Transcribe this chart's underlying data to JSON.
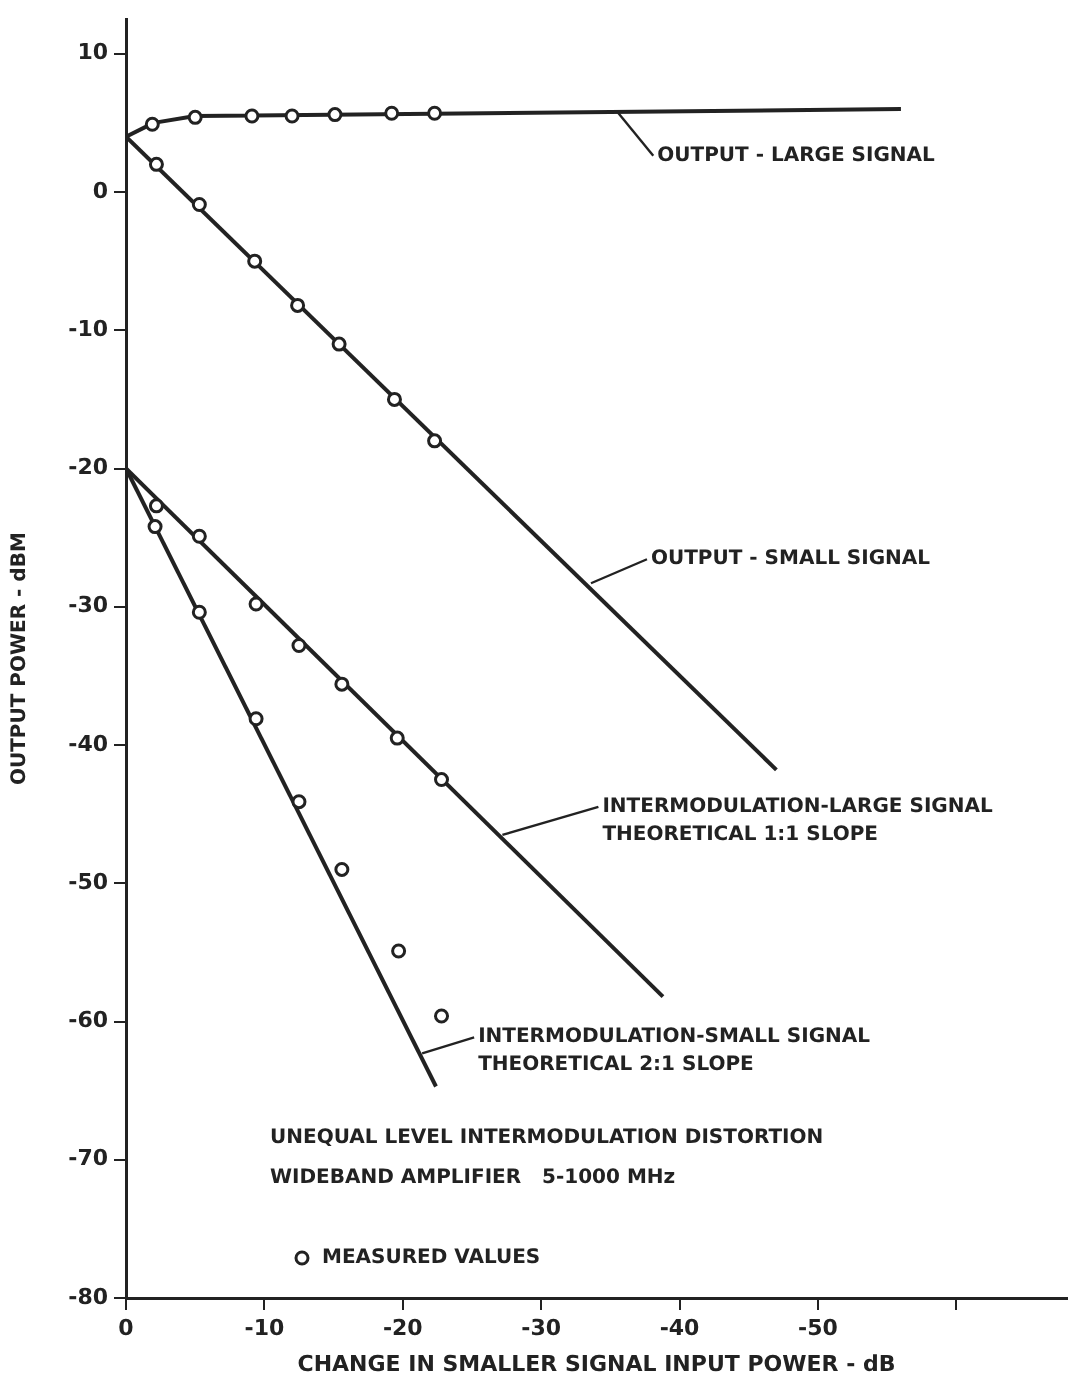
{
  "chart_data": {
    "type": "line",
    "xlabel": "CHANGE IN SMALLER SIGNAL INPUT POWER - dB",
    "ylabel": "OUTPUT POWER - dBM",
    "xlim": [
      0,
      -68
    ],
    "xticks": [
      0,
      -10,
      -20,
      -30,
      -40,
      -50,
      {
        "value": -60,
        "label": null
      }
    ],
    "ylim": [
      -80,
      12.5
    ],
    "yticks": [
      10,
      0,
      -10,
      -20,
      -30,
      -40,
      -50,
      -60,
      -70,
      -80
    ],
    "grid": false,
    "legend": "bottom left",
    "line_style": "solid",
    "series": [
      {
        "type": "line",
        "color": "#222222",
        "marker": "none",
        "x": [
          0,
          -2,
          -5,
          -56
        ],
        "values": [
          4,
          5,
          5.5,
          6
        ]
      },
      {
        "type": "line",
        "color": "#222222",
        "marker": "none",
        "x": [
          0,
          -47
        ],
        "values": [
          4,
          -41.8
        ]
      },
      {
        "type": "line",
        "color": "#222222",
        "marker": "none",
        "x": [
          0,
          -38.8
        ],
        "values": [
          -20,
          -58.2
        ]
      },
      {
        "type": "line",
        "color": "#222222",
        "marker": "none",
        "x": [
          0,
          -22.4
        ],
        "values": [
          -20,
          -64.7
        ]
      },
      {
        "type": "scatter",
        "name": "MEASURED VALUES",
        "color": "#222222",
        "marker": "circle",
        "x": [
          -1.9,
          -5.0,
          -9.1,
          -12.0,
          -15.1,
          -19.2,
          -22.3,
          -2.2,
          -5.3,
          -9.3,
          -12.4,
          -15.4,
          -19.4,
          -22.3,
          -2.2,
          -5.3,
          -9.4,
          -12.5,
          -15.6,
          -19.6,
          -22.8,
          -2.1,
          -5.3,
          -9.4,
          -12.5,
          -15.6,
          -19.7,
          -22.8
        ],
        "values": [
          4.9,
          5.4,
          5.5,
          5.5,
          5.6,
          5.7,
          5.7,
          2.0,
          -0.9,
          -5.0,
          -8.2,
          -11.0,
          -15.0,
          -18.0,
          -22.7,
          -24.9,
          -29.8,
          -32.8,
          -35.6,
          -39.5,
          -42.5,
          -24.2,
          -30.4,
          -38.1,
          -44.1,
          -49.0,
          -54.9,
          -59.6
        ]
      }
    ],
    "annotations": [
      {
        "text": "OUTPUT - LARGE SIGNAL",
        "x": -35.5,
        "y": 5.8
      },
      {
        "text": "OUTPUT - SMALL SIGNAL",
        "x": -33.6,
        "y": -28.3
      },
      {
        "text": "INTERMODULATION-LARGE SIGNAL\nTHEORETICAL 1:1 SLOPE",
        "x": -27.2,
        "y": -46.5
      },
      {
        "text": "INTERMODULATION-SMALL SIGNAL\nTHEORETICAL 2:1 SLOPE",
        "x": -21.4,
        "y": -62.3
      },
      "UNEQUAL LEVEL INTERMODULATION DISTORTION",
      "WIDEBAND AMPLIFIER   5-1000 MHz"
    ]
  }
}
